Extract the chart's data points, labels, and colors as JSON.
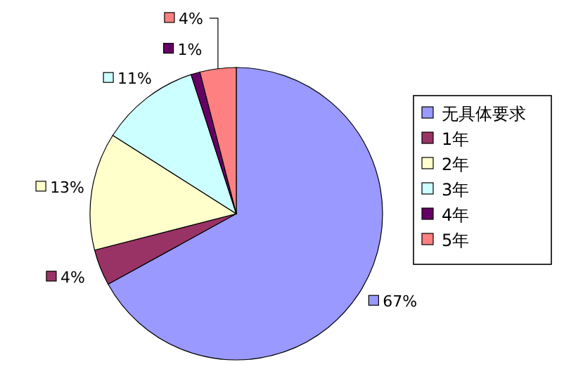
{
  "chart_data": {
    "type": "pie",
    "categories": [
      "无具体要求",
      "1年",
      "2年",
      "3年",
      "4年",
      "5年"
    ],
    "values": [
      67,
      4,
      13,
      11,
      1,
      4
    ],
    "colors": [
      "#9999ff",
      "#993366",
      "#ffffcc",
      "#ccffff",
      "#660066",
      "#ff8080"
    ],
    "value_labels": [
      "67%",
      "4%",
      "13%",
      "11%",
      "1%",
      "4%"
    ],
    "legend": "right"
  }
}
